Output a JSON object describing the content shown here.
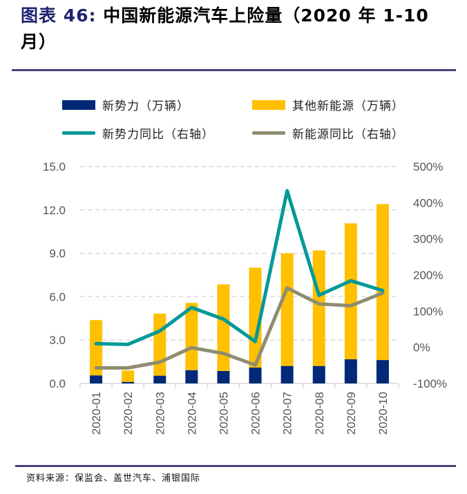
{
  "title": {
    "prefix": "图表 46:",
    "text": "中国新能源汽车上险量（2020 年 1-10 月）"
  },
  "source": "资料来源：保监会、盖世汽车、浦银国际",
  "colors": {
    "new_forces": "#002a77",
    "other_nev": "#ffc000",
    "new_forces_yoy": "#009999",
    "nev_yoy": "#8f8d6e",
    "rule": "#4b3f7d"
  },
  "chart_data": {
    "type": "bar",
    "stacked": true,
    "categories": [
      "2020-01",
      "2020-02",
      "2020-03",
      "2020-04",
      "2020-05",
      "2020-06",
      "2020-07",
      "2020-08",
      "2020-09",
      "2020-10"
    ],
    "series": [
      {
        "name": "新势力（万辆）",
        "type": "bar",
        "axis": "left",
        "values": [
          0.56,
          0.11,
          0.54,
          0.92,
          0.86,
          1.1,
          1.21,
          1.21,
          1.67,
          1.62
        ]
      },
      {
        "name": "其他新能源（万辆）",
        "type": "bar",
        "axis": "left",
        "values": [
          3.82,
          0.79,
          4.29,
          4.65,
          5.99,
          6.91,
          7.79,
          7.99,
          9.4,
          10.78
        ]
      },
      {
        "name": "新势力同比（右轴）",
        "type": "line",
        "axis": "right",
        "values": [
          10,
          8,
          45,
          110,
          78,
          16,
          433,
          144,
          184,
          157
        ]
      },
      {
        "name": "新能源同比（右轴）",
        "type": "line",
        "axis": "right",
        "values": [
          -57,
          -57,
          -41,
          -1,
          -17,
          -49,
          164,
          120,
          115,
          150
        ]
      }
    ],
    "left_axis": {
      "ylim": [
        0,
        15
      ],
      "ticks": [
        "0.0",
        "3.0",
        "6.0",
        "9.0",
        "12.0",
        "15.0"
      ]
    },
    "right_axis": {
      "ylim": [
        -100,
        500
      ],
      "ticks": [
        "-100%",
        "0%",
        "100%",
        "200%",
        "300%",
        "400%",
        "500%"
      ]
    },
    "grid": true,
    "legend": "top"
  }
}
